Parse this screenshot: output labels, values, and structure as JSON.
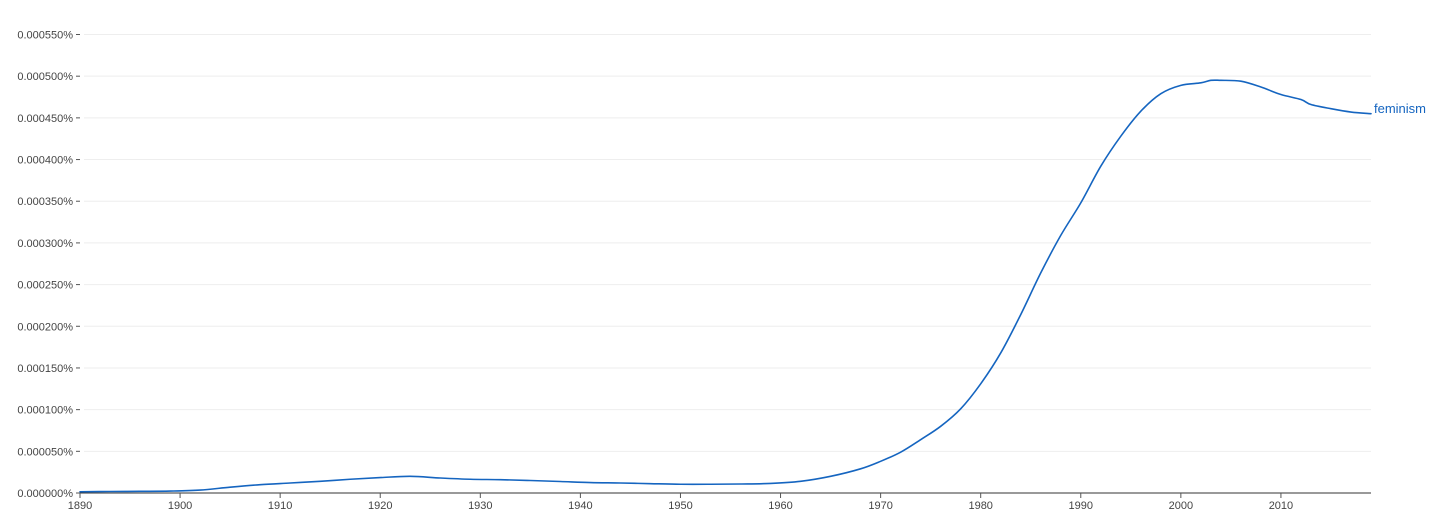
{
  "chart_data": {
    "type": "line",
    "title": "",
    "xlabel": "",
    "ylabel": "",
    "xlim": [
      1890,
      2019
    ],
    "ylim": [
      0,
      0.00055
    ],
    "grid": true,
    "x_ticks": [
      1890,
      1900,
      1910,
      1920,
      1930,
      1940,
      1950,
      1960,
      1970,
      1980,
      1990,
      2000,
      2010
    ],
    "y_ticks": [
      0,
      5e-05,
      0.0001,
      0.00015,
      0.0002,
      0.00025,
      0.0003,
      0.00035,
      0.0004,
      0.00045,
      0.0005,
      0.00055
    ],
    "y_tick_labels": [
      "0.000000%",
      "0.000050%",
      "0.000100%",
      "0.000150%",
      "0.000200%",
      "0.000250%",
      "0.000300%",
      "0.000350%",
      "0.000400%",
      "0.000450%",
      "0.000500%",
      "0.000550%"
    ],
    "series": [
      {
        "name": "feminism",
        "color": "#1565c0",
        "x": [
          1890,
          1893,
          1896,
          1899,
          1902,
          1905,
          1908,
          1911,
          1914,
          1917,
          1920,
          1923,
          1926,
          1929,
          1932,
          1935,
          1938,
          1941,
          1944,
          1947,
          1950,
          1953,
          1956,
          1959,
          1962,
          1965,
          1968,
          1970,
          1972,
          1974,
          1976,
          1978,
          1980,
          1982,
          1984,
          1986,
          1988,
          1990,
          1992,
          1994,
          1996,
          1998,
          2000,
          2002,
          2003,
          2004,
          2006,
          2008,
          2010,
          2012,
          2013,
          2015,
          2017,
          2019
        ],
        "values": [
          1.5e-06,
          1.8e-06,
          2e-06,
          2.3e-06,
          3.5e-06,
          7e-06,
          1e-05,
          1.2e-05,
          1.4e-05,
          1.65e-05,
          1.85e-05,
          2e-05,
          1.8e-05,
          1.65e-05,
          1.6e-05,
          1.5e-05,
          1.38e-05,
          1.25e-05,
          1.2e-05,
          1.12e-05,
          1.05e-05,
          1.05e-05,
          1.08e-05,
          1.15e-05,
          1.4e-05,
          2e-05,
          2.9e-05,
          3.8e-05,
          4.9e-05,
          6.4e-05,
          8e-05,
          0.000101,
          0.000131,
          0.000168,
          0.000214,
          0.000264,
          0.000309,
          0.000348,
          0.000392,
          0.000428,
          0.000458,
          0.000479,
          0.000489,
          0.000492,
          0.000495,
          0.000495,
          0.000494,
          0.000487,
          0.000478,
          0.000472,
          0.000466,
          0.000461,
          0.000457,
          0.000455
        ]
      }
    ]
  }
}
